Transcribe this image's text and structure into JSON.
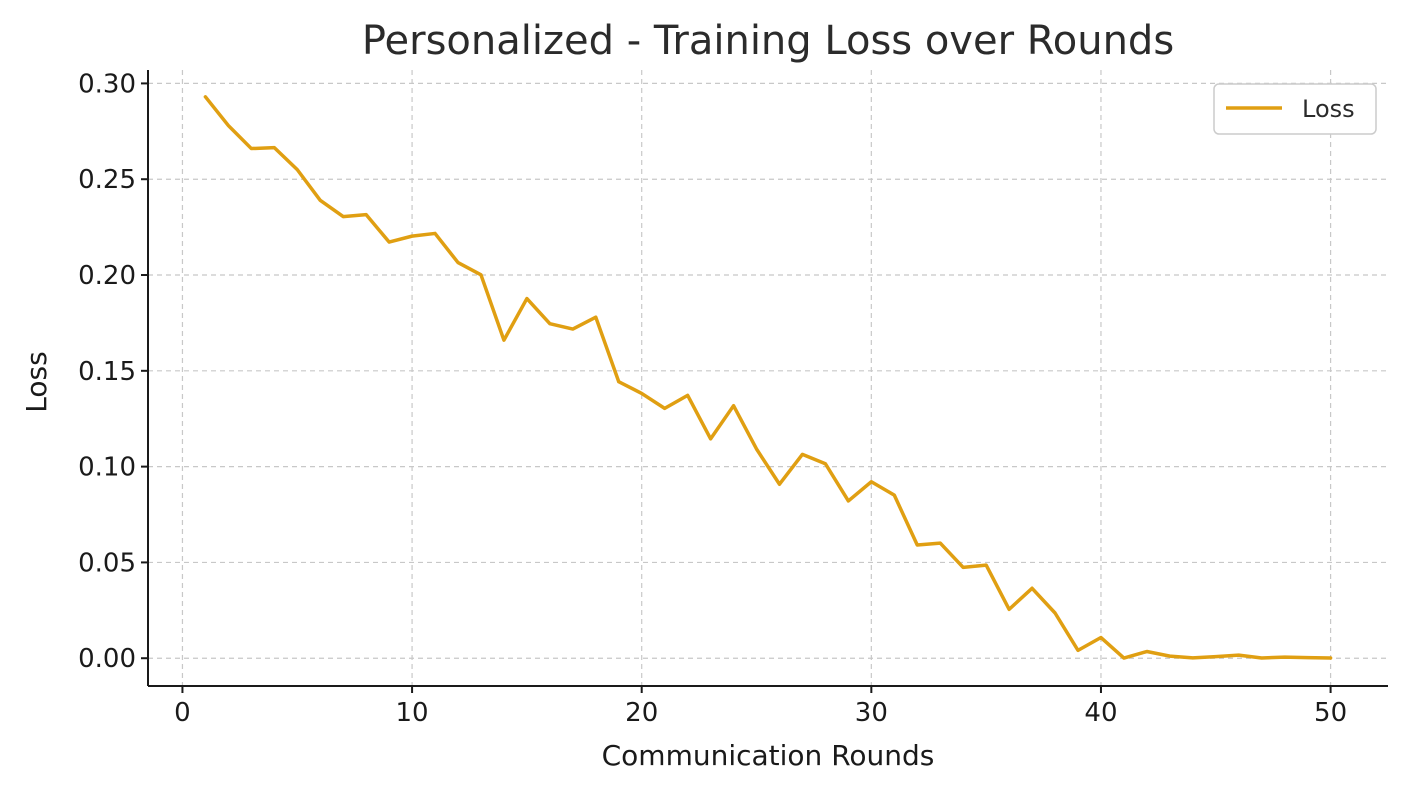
{
  "chart_data": {
    "type": "line",
    "title": "Personalized - Training Loss over Rounds",
    "xlabel": "Communication Rounds",
    "ylabel": "Loss",
    "xlim": [
      -1.5,
      52.5
    ],
    "ylim": [
      -0.0145,
      0.307
    ],
    "xticks": [
      "0",
      "10",
      "20",
      "30",
      "40",
      "50"
    ],
    "yticks": [
      "0.00",
      "0.05",
      "0.10",
      "0.15",
      "0.20",
      "0.25",
      "0.30"
    ],
    "grid": true,
    "legend_position": "top-right",
    "series": [
      {
        "name": "Loss",
        "color": "#E09F12",
        "x": [
          1,
          2,
          3,
          4,
          5,
          6,
          7,
          8,
          9,
          10,
          11,
          12,
          13,
          14,
          15,
          16,
          17,
          18,
          19,
          20,
          21,
          22,
          23,
          24,
          25,
          26,
          27,
          28,
          29,
          30,
          31,
          32,
          33,
          34,
          35,
          36,
          37,
          38,
          39,
          40,
          41,
          42,
          43,
          44,
          45,
          46,
          47,
          48,
          49,
          50
        ],
        "y": [
          0.293,
          0.278,
          0.266,
          0.2665,
          0.255,
          0.239,
          0.2305,
          0.2315,
          0.2172,
          0.2203,
          0.2217,
          0.2065,
          0.2001,
          0.166,
          0.1877,
          0.1746,
          0.1718,
          0.178,
          0.1443,
          0.1382,
          0.1304,
          0.1372,
          0.1145,
          0.1318,
          0.1092,
          0.0908,
          0.1064,
          0.1015,
          0.0821,
          0.0921,
          0.0851,
          0.0591,
          0.0601,
          0.0474,
          0.0486,
          0.0255,
          0.0365,
          0.0236,
          0.0041,
          0.0108,
          0.0001,
          0.0035,
          0.0011,
          0.0002,
          0.0008,
          0.0016,
          0.0001,
          0.0006,
          0.0003,
          0.0001
        ]
      }
    ]
  }
}
